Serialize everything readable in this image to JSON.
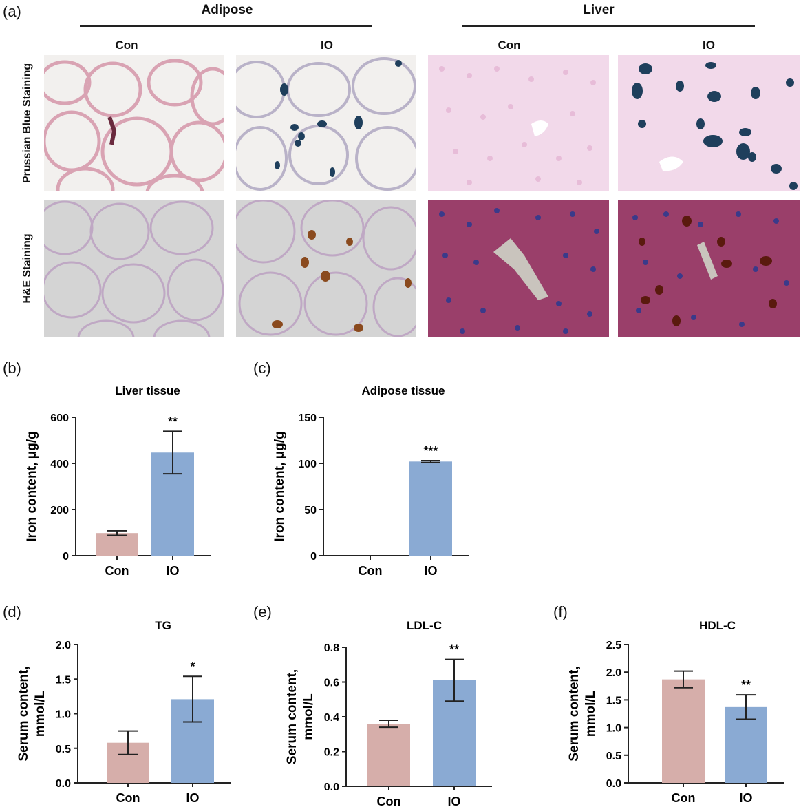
{
  "panel_a": {
    "letter": "(a)",
    "group_headers": [
      "Adipose",
      "Liver"
    ],
    "column_labels": [
      "Con",
      "IO",
      "Con",
      "IO"
    ],
    "row_labels": [
      "Prussian Blue Staining",
      "H&E Staining"
    ],
    "colors": {
      "prussian_adipose_bg": "#f2f0ee",
      "prussian_adipose_membrane": "#d9a3b3",
      "prussian_blue_deposit": "#1f3f5c",
      "prussian_liver_bg": "#f2d9ea",
      "he_adipose_bg": "#d4d4d4",
      "he_adipose_membrane": "#c0a0c0",
      "he_liver_bg": "#9a3f6a",
      "he_iron_brown": "#8a4a1e"
    }
  },
  "chart_data": [
    {
      "panel": "(b)",
      "type": "bar",
      "title": "Liver tissue",
      "ylabel": "Iron content, μg/g",
      "categories": [
        "Con",
        "IO"
      ],
      "values": [
        98,
        447
      ],
      "errors": [
        10,
        92
      ],
      "ylim": [
        0,
        600
      ],
      "yticks": [
        0,
        200,
        400,
        600
      ],
      "significance": [
        "",
        "**"
      ],
      "colors": [
        "#d6aeaa",
        "#8aaad3"
      ]
    },
    {
      "panel": "(c)",
      "type": "bar",
      "title": "Adipose tissue",
      "ylabel": "Iron content, μg/g",
      "categories": [
        "Con",
        "IO"
      ],
      "values": [
        0,
        102
      ],
      "errors": [
        0,
        1
      ],
      "ylim": [
        0,
        150
      ],
      "yticks": [
        0,
        50,
        100,
        150
      ],
      "significance": [
        "",
        "***"
      ],
      "colors": [
        "#d6aeaa",
        "#8aaad3"
      ]
    },
    {
      "panel": "(d)",
      "type": "bar",
      "title": "TG",
      "ylabel": "Serum content, mmol/L",
      "ylabel_lines": [
        "Serum content,",
        "mmol/L"
      ],
      "categories": [
        "Con",
        "IO"
      ],
      "values": [
        0.58,
        1.21
      ],
      "errors": [
        0.17,
        0.33
      ],
      "ylim": [
        0,
        2.0
      ],
      "yticks": [
        "0.0",
        "0.5",
        "1.0",
        "1.5",
        "2.0"
      ],
      "significance": [
        "",
        "*"
      ],
      "colors": [
        "#d6aeaa",
        "#8aaad3"
      ]
    },
    {
      "panel": "(e)",
      "type": "bar",
      "title": "LDL-C",
      "ylabel": "Serum content, mmol/L",
      "ylabel_lines": [
        "Serum content,",
        "mmol/L"
      ],
      "categories": [
        "Con",
        "IO"
      ],
      "values": [
        0.36,
        0.61
      ],
      "errors": [
        0.02,
        0.12
      ],
      "ylim": [
        0,
        0.8
      ],
      "yticks": [
        "0.0",
        "0.2",
        "0.4",
        "0.6",
        "0.8"
      ],
      "significance": [
        "",
        "**"
      ],
      "colors": [
        "#d6aeaa",
        "#8aaad3"
      ]
    },
    {
      "panel": "(f)",
      "type": "bar",
      "title": "HDL-C",
      "ylabel": "Serum content, mmol/L",
      "ylabel_lines": [
        "Serum content,",
        "mmol/L"
      ],
      "categories": [
        "Con",
        "IO"
      ],
      "values": [
        1.87,
        1.37
      ],
      "errors": [
        0.15,
        0.22
      ],
      "ylim": [
        0,
        2.5
      ],
      "yticks": [
        "0.0",
        "0.5",
        "1.0",
        "1.5",
        "2.0",
        "2.5"
      ],
      "significance": [
        "",
        "**"
      ],
      "colors": [
        "#d6aeaa",
        "#8aaad3"
      ]
    }
  ]
}
